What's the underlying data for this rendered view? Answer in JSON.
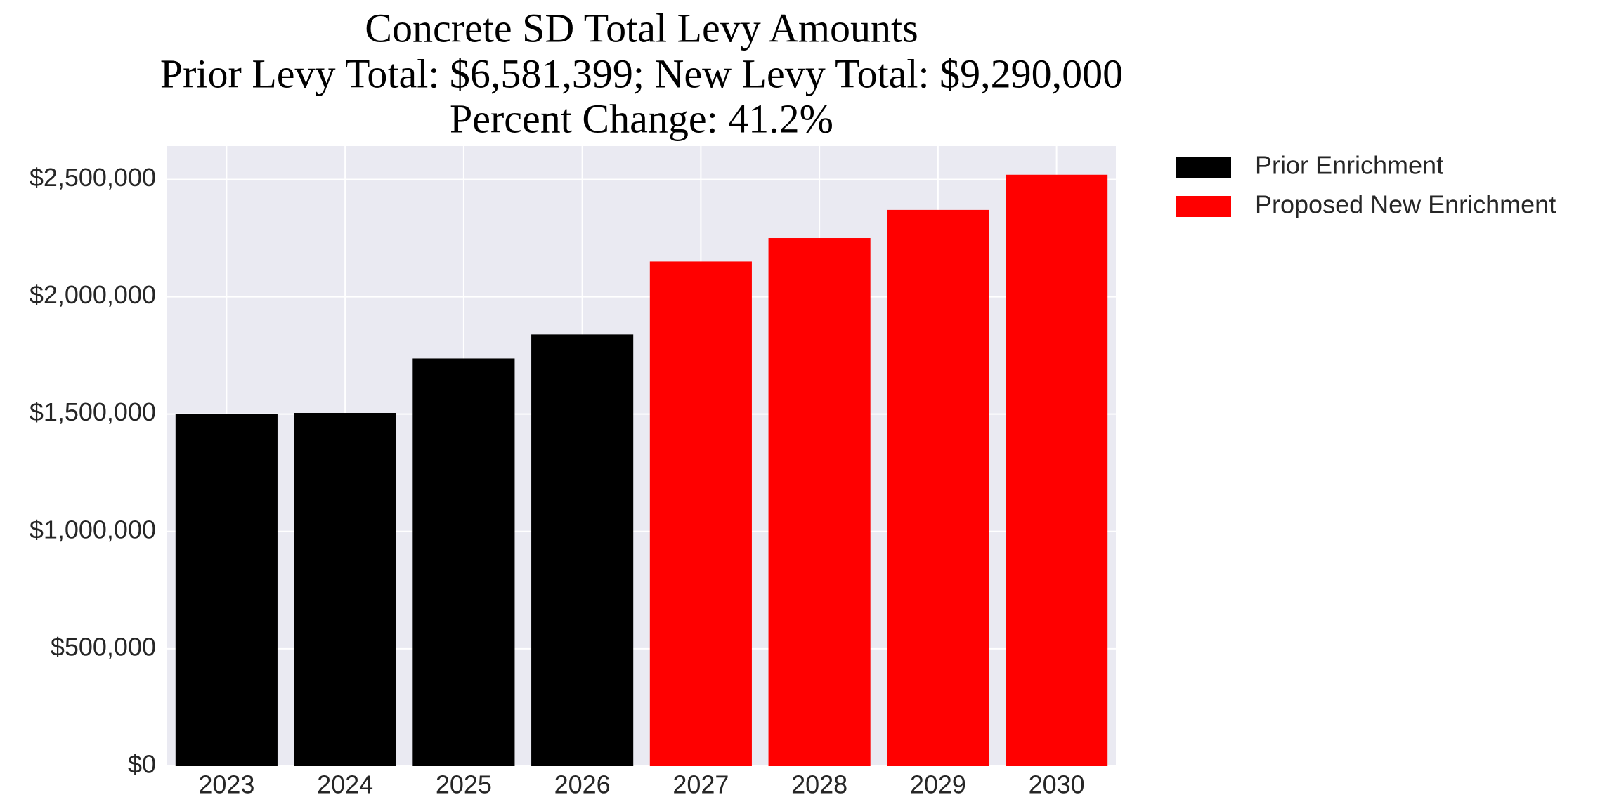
{
  "chart_data": {
    "type": "bar",
    "title": "Concrete SD Total Levy Amounts",
    "subtitle": [
      "Prior Levy Total:  $6,581,399; New Levy Total: $9,290,000",
      "Percent Change: 41.2%"
    ],
    "categories": [
      "2023",
      "2024",
      "2025",
      "2026",
      "2027",
      "2028",
      "2029",
      "2030"
    ],
    "series": [
      {
        "name": "Prior Enrichment",
        "color": "#000000",
        "values": [
          1500000,
          1505000,
          1737000,
          1839000,
          null,
          null,
          null,
          null
        ]
      },
      {
        "name": "Proposed New Enrichment",
        "color": "#ff0000",
        "values": [
          null,
          null,
          null,
          null,
          2150000,
          2250000,
          2370000,
          2520000
        ]
      }
    ],
    "ylim": [
      0,
      2642000
    ],
    "yticks": [
      {
        "value": 0,
        "label": "$0"
      },
      {
        "value": 500000,
        "label": "$500,000"
      },
      {
        "value": 1000000,
        "label": "$1,000,000"
      },
      {
        "value": 1500000,
        "label": "$1,500,000"
      },
      {
        "value": 2000000,
        "label": "$2,000,000"
      },
      {
        "value": 2500000,
        "label": "$2,500,000"
      }
    ],
    "grid": true,
    "legend": "outside-upper-right"
  }
}
